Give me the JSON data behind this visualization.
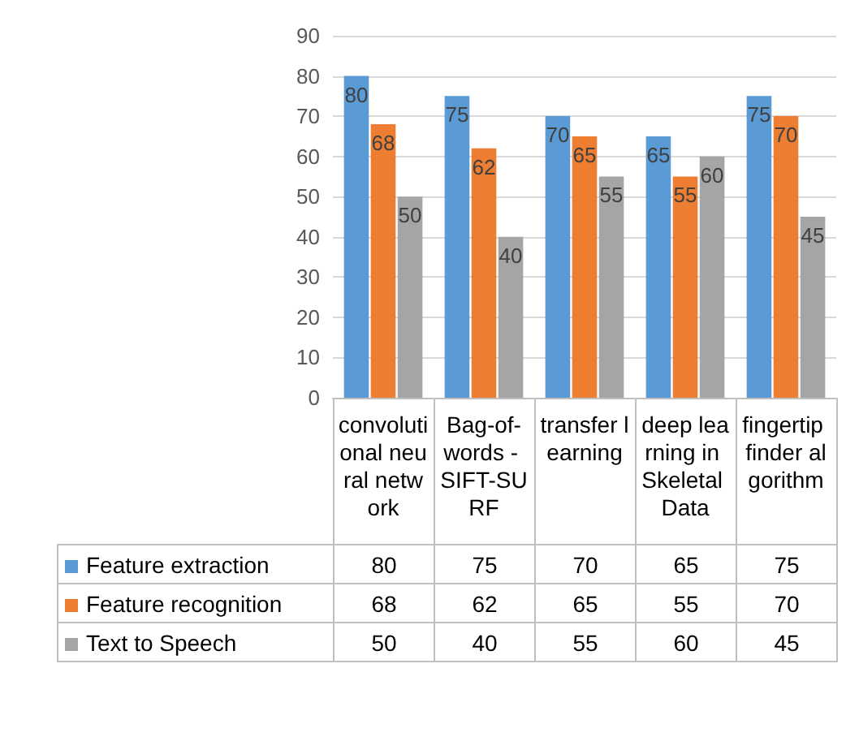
{
  "chart_data": {
    "type": "bar",
    "categories": [
      "convolutional neural network",
      "Bag-of-words - SIFT-SURF",
      "transfer learning",
      "deep learning in Skeletal Data",
      "fingertip finder algorithm"
    ],
    "series": [
      {
        "name": "Feature extraction",
        "color": "#5b9bd5",
        "values": [
          80,
          75,
          70,
          65,
          75
        ],
        "value_labels": [
          "80",
          "75",
          "70",
          "65",
          "75"
        ]
      },
      {
        "name": "Feature recognition",
        "color": "#ed7d31",
        "values": [
          68,
          62,
          65,
          55,
          70
        ],
        "value_labels": [
          "68",
          "62",
          "65",
          "55",
          "70"
        ]
      },
      {
        "name": "Text to Speech",
        "color": "#a5a5a5",
        "values": [
          50,
          40,
          55,
          60,
          45
        ],
        "value_labels": [
          "50",
          "40",
          "55",
          "60",
          "45"
        ]
      }
    ],
    "ylim": [
      0,
      90
    ],
    "yticks": [
      0,
      10,
      20,
      30,
      40,
      50,
      60,
      70,
      80,
      90
    ],
    "grid": "y",
    "legend": "bottom",
    "data_labels": true
  }
}
